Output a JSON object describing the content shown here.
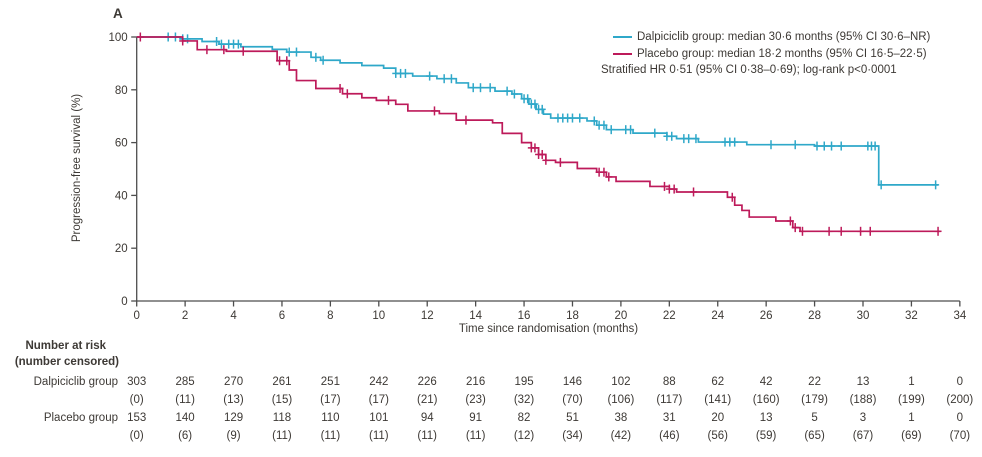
{
  "panel_label": "A",
  "colors": {
    "dalpiciclib": "#2FA8C9",
    "placebo": "#BD1A5A",
    "text": "#3D3935",
    "axis": "#4D4D4D"
  },
  "legend": {
    "entries": [
      {
        "series": "dalpiciclib",
        "label": "Dalpiciclib group: median 30·6 months (95% CI 30·6–NR)"
      },
      {
        "series": "placebo",
        "label": "Placebo group: median 18·2 months (95% CI 16·5–22·5)"
      }
    ],
    "note": "Stratified HR 0·51 (95% CI 0·38–0·69); log-rank p<0·0001"
  },
  "chart_data": {
    "type": "line",
    "subtype": "kaplan-meier-step",
    "title": "",
    "xlabel": "Time since randomisation (months)",
    "ylabel": "Progression-free survival (%)",
    "xlim": [
      0,
      34
    ],
    "ylim": [
      0,
      100
    ],
    "xticks": [
      0,
      2,
      4,
      6,
      8,
      10,
      12,
      14,
      16,
      18,
      20,
      22,
      24,
      26,
      28,
      30,
      32,
      34
    ],
    "yticks": [
      0,
      20,
      40,
      60,
      80,
      100
    ],
    "legend_position": "top-right",
    "grid": false,
    "series": [
      {
        "name": "Dalpiciclib group",
        "color_key": "dalpiciclib",
        "median_months": "30·6",
        "ci": "30·6–NR",
        "steps": [
          [
            0,
            100
          ],
          [
            1.8,
            99.3
          ],
          [
            2.7,
            98.3
          ],
          [
            3.4,
            97.3
          ],
          [
            4.3,
            96.3
          ],
          [
            5.6,
            95.3
          ],
          [
            6.2,
            94.3
          ],
          [
            7.2,
            92.3
          ],
          [
            7.6,
            91.2
          ],
          [
            8.4,
            90.2
          ],
          [
            9.3,
            89.2
          ],
          [
            10.2,
            88.2
          ],
          [
            10.7,
            86.2
          ],
          [
            11.4,
            85.2
          ],
          [
            12.4,
            84.2
          ],
          [
            13.2,
            82.6
          ],
          [
            13.7,
            80.8
          ],
          [
            14.8,
            79.5
          ],
          [
            15.5,
            78.4
          ],
          [
            15.9,
            76.6
          ],
          [
            16.2,
            74.6
          ],
          [
            16.5,
            72.6
          ],
          [
            16.8,
            70.8
          ],
          [
            17.1,
            69.3
          ],
          [
            18.6,
            68.2
          ],
          [
            19.0,
            66.6
          ],
          [
            19.4,
            64.9
          ],
          [
            20.5,
            63.6
          ],
          [
            21.9,
            62.4
          ],
          [
            22.3,
            61.5
          ],
          [
            23.2,
            60.2
          ],
          [
            25.2,
            59.2
          ],
          [
            28.0,
            58.7
          ],
          [
            30.65,
            44
          ]
        ],
        "end": 33.1,
        "censors": [
          1.3,
          1.6,
          1.9,
          2.1,
          3.3,
          3.5,
          3.8,
          4.0,
          4.2,
          6.3,
          6.6,
          7.4,
          7.7,
          10.7,
          10.9,
          11.1,
          12.1,
          12.7,
          13.0,
          13.9,
          14.2,
          14.6,
          15.3,
          15.6,
          16.0,
          16.15,
          16.3,
          16.45,
          16.6,
          16.75,
          17.4,
          17.6,
          17.8,
          18.0,
          18.3,
          18.9,
          19.1,
          19.3,
          19.6,
          20.2,
          20.4,
          21.4,
          21.9,
          22.1,
          22.6,
          22.8,
          23.1,
          24.3,
          24.5,
          24.7,
          26.2,
          27.2,
          28.1,
          28.4,
          28.7,
          29.1,
          30.2,
          30.35,
          30.5,
          30.75,
          33.0
        ]
      },
      {
        "name": "Placebo group",
        "color_key": "placebo",
        "median_months": "18·2",
        "ci": "16·5–22·5",
        "steps": [
          [
            0,
            100
          ],
          [
            1.9,
            98.5
          ],
          [
            2.5,
            95.2
          ],
          [
            3.7,
            94.6
          ],
          [
            5.8,
            91.0
          ],
          [
            6.3,
            87.5
          ],
          [
            6.6,
            83.5
          ],
          [
            7.4,
            80.5
          ],
          [
            8.5,
            78.5
          ],
          [
            9.3,
            77.0
          ],
          [
            9.9,
            76.0
          ],
          [
            10.7,
            74.5
          ],
          [
            11.2,
            72.0
          ],
          [
            12.5,
            71.0
          ],
          [
            13.2,
            68.5
          ],
          [
            14.7,
            67.5
          ],
          [
            15.1,
            63.5
          ],
          [
            15.9,
            60.0
          ],
          [
            16.3,
            58.0
          ],
          [
            16.6,
            55.5
          ],
          [
            16.9,
            53.3
          ],
          [
            17.3,
            52.5
          ],
          [
            18.2,
            50.2
          ],
          [
            19.0,
            48.8
          ],
          [
            19.4,
            47.0
          ],
          [
            19.8,
            45.3
          ],
          [
            21.2,
            43.4
          ],
          [
            22.0,
            42.4
          ],
          [
            22.3,
            41.3
          ],
          [
            24.4,
            39.3
          ],
          [
            24.7,
            36.3
          ],
          [
            25.0,
            34.3
          ],
          [
            25.3,
            31.8
          ],
          [
            26.4,
            30.3
          ],
          [
            27.1,
            27.8
          ],
          [
            27.4,
            26.4
          ]
        ],
        "end": 33.2,
        "censors": [
          0.15,
          1.9,
          2.9,
          3.6,
          4.4,
          5.9,
          6.2,
          8.4,
          8.7,
          10.4,
          12.3,
          13.6,
          16.3,
          16.45,
          16.6,
          16.75,
          16.9,
          17.5,
          19.1,
          19.3,
          19.5,
          21.8,
          22.0,
          22.2,
          23.0,
          24.6,
          27.0,
          27.2,
          27.5,
          28.6,
          29.1,
          29.9,
          30.3,
          33.1
        ]
      }
    ]
  },
  "risk_table": {
    "header_line1": "Number at risk",
    "header_line2": "(number censored)",
    "timepoints": [
      0,
      2,
      4,
      6,
      8,
      10,
      12,
      14,
      16,
      18,
      20,
      22,
      24,
      26,
      28,
      30,
      32,
      34
    ],
    "rows": [
      {
        "label": "Dalpiciclib group",
        "at_risk": [
          303,
          285,
          270,
          261,
          251,
          242,
          226,
          216,
          195,
          146,
          102,
          88,
          62,
          42,
          22,
          13,
          1,
          0
        ],
        "censored": [
          0,
          11,
          13,
          15,
          17,
          17,
          21,
          23,
          32,
          70,
          106,
          117,
          141,
          160,
          179,
          188,
          199,
          200
        ]
      },
      {
        "label": "Placebo group",
        "at_risk": [
          153,
          140,
          129,
          118,
          110,
          101,
          94,
          91,
          82,
          51,
          38,
          31,
          20,
          13,
          5,
          3,
          1,
          0
        ],
        "censored": [
          0,
          6,
          9,
          11,
          11,
          11,
          11,
          11,
          12,
          34,
          42,
          46,
          56,
          59,
          65,
          67,
          69,
          70
        ]
      }
    ]
  }
}
